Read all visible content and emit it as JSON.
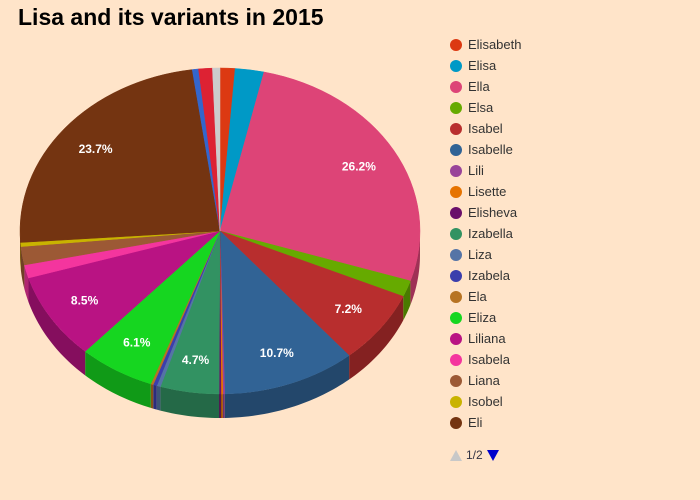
{
  "chart_data": {
    "type": "pie",
    "title": "Lisa and its variants in 2015",
    "slices": [
      {
        "name": "Elisabeth",
        "value": 1.2,
        "color": "#dc3912",
        "label": ""
      },
      {
        "name": "Elisa",
        "value": 2.3,
        "color": "#0099c6",
        "label": ""
      },
      {
        "name": "Ella",
        "value": 26.2,
        "color": "#dd4477",
        "label": "26.2%"
      },
      {
        "name": "Elsa",
        "value": 1.6,
        "color": "#66aa00",
        "label": ""
      },
      {
        "name": "Isabel",
        "value": 7.2,
        "color": "#b82e2e",
        "label": "7.2%"
      },
      {
        "name": "Isabelle",
        "value": 10.7,
        "color": "#316395",
        "label": "10.7%"
      },
      {
        "name": "Lili",
        "value": 0.15,
        "color": "#994499",
        "label": ""
      },
      {
        "name": "Lisette",
        "value": 0.15,
        "color": "#e67300",
        "label": ""
      },
      {
        "name": "Elisheva",
        "value": 0.15,
        "color": "#6a0f6a",
        "label": ""
      },
      {
        "name": "Izabella",
        "value": 4.7,
        "color": "#329262",
        "label": "4.7%"
      },
      {
        "name": "Liza",
        "value": 0.3,
        "color": "#5574a6",
        "label": ""
      },
      {
        "name": "Izabela",
        "value": 0.3,
        "color": "#3b3eac",
        "label": ""
      },
      {
        "name": "Ela",
        "value": 0.2,
        "color": "#b77322",
        "label": ""
      },
      {
        "name": "Eliza",
        "value": 6.1,
        "color": "#16d620",
        "label": "6.1%"
      },
      {
        "name": "Liliana",
        "value": 8.5,
        "color": "#b91383",
        "label": "8.5%"
      },
      {
        "name": "Isabela",
        "value": 1.3,
        "color": "#f4359e",
        "label": ""
      },
      {
        "name": "Liana",
        "value": 1.8,
        "color": "#9c5935",
        "label": ""
      },
      {
        "name": "Isobel",
        "value": 0.4,
        "color": "#c9b300",
        "label": ""
      },
      {
        "name": "Eli",
        "value": 23.7,
        "color": "#743411",
        "label": "23.7%"
      },
      {
        "name": "",
        "value": 0.5,
        "color": "#3366cc",
        "label": ""
      },
      {
        "name": "",
        "value": 1.1,
        "color": "#dd2233",
        "label": ""
      },
      {
        "name": "",
        "value": 0.6,
        "color": "#cccccc",
        "label": ""
      }
    ]
  },
  "legend": {
    "items": [
      {
        "name": "Elisabeth",
        "color": "#dc3912"
      },
      {
        "name": "Elisa",
        "color": "#0099c6"
      },
      {
        "name": "Ella",
        "color": "#dd4477"
      },
      {
        "name": "Elsa",
        "color": "#66aa00"
      },
      {
        "name": "Isabel",
        "color": "#b82e2e"
      },
      {
        "name": "Isabelle",
        "color": "#316395"
      },
      {
        "name": "Lili",
        "color": "#994499"
      },
      {
        "name": "Lisette",
        "color": "#e67300"
      },
      {
        "name": "Elisheva",
        "color": "#6a0f6a"
      },
      {
        "name": "Izabella",
        "color": "#329262"
      },
      {
        "name": "Liza",
        "color": "#5574a6"
      },
      {
        "name": "Izabela",
        "color": "#3b3eac"
      },
      {
        "name": "Ela",
        "color": "#b77322"
      },
      {
        "name": "Eliza",
        "color": "#16d620"
      },
      {
        "name": "Liliana",
        "color": "#b91383"
      },
      {
        "name": "Isabela",
        "color": "#f4359e"
      },
      {
        "name": "Liana",
        "color": "#9c5935"
      },
      {
        "name": "Isobel",
        "color": "#c9b300"
      },
      {
        "name": "Eli",
        "color": "#743411"
      }
    ],
    "pager": "1/2"
  }
}
